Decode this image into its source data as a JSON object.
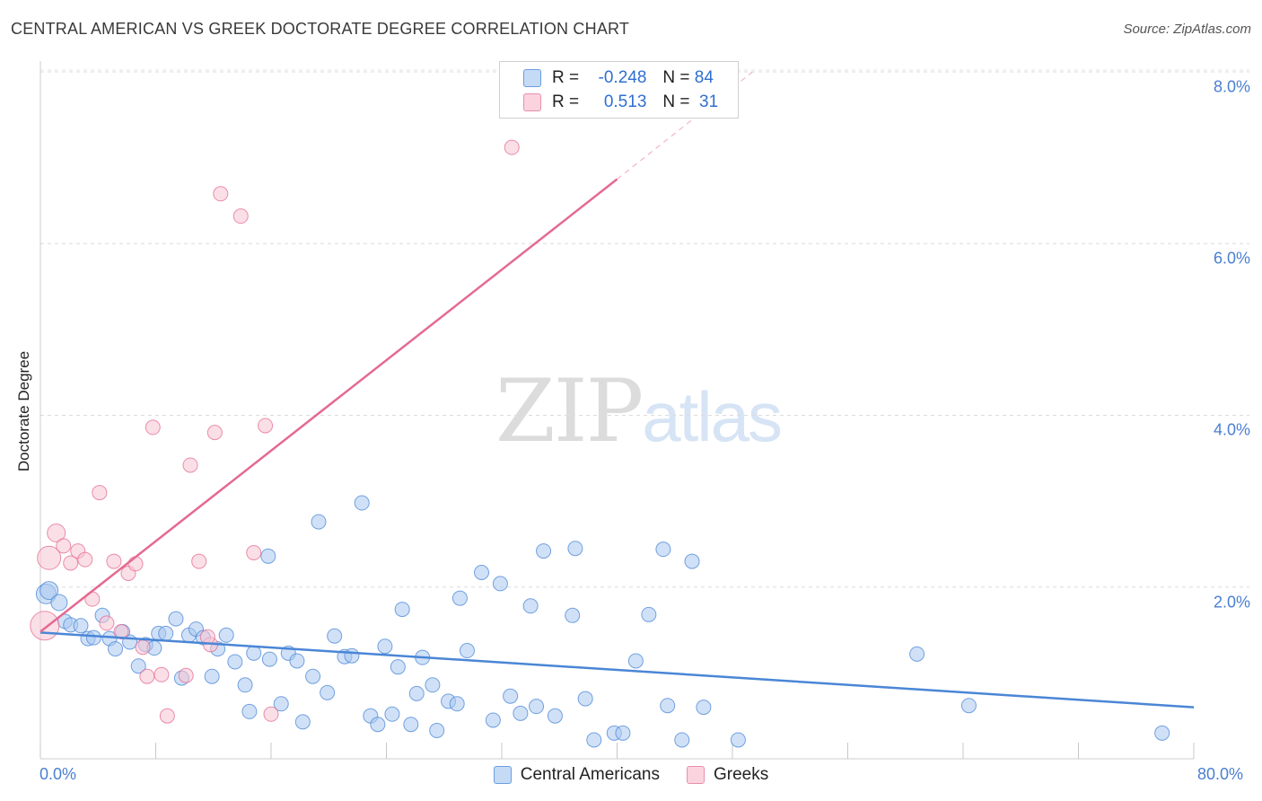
{
  "title": "CENTRAL AMERICAN VS GREEK DOCTORATE DEGREE CORRELATION CHART",
  "source": "Source: ZipAtlas.com",
  "watermark": {
    "part1": "ZIP",
    "part2": "atlas"
  },
  "legend": {
    "rows": [
      {
        "r_label": "R =",
        "r_value": "-0.248",
        "n_label": "N =",
        "n_value": "84",
        "color": "#a9c8f0",
        "border": "#6a9ee0"
      },
      {
        "r_label": "R =",
        "r_value": " 0.513",
        "n_label": "N =",
        "n_value": " 31",
        "color": "#f8c4d4",
        "border": "#e890ab"
      }
    ]
  },
  "bottom_legend": [
    {
      "label": "Central Americans",
      "color": "#a9c8f0",
      "border": "#6a9ee0"
    },
    {
      "label": "Greeks",
      "color": "#f8c4d4",
      "border": "#e890ab"
    }
  ],
  "chart_data": {
    "type": "scatter",
    "title": "CENTRAL AMERICAN VS GREEK DOCTORATE DEGREE CORRELATION CHART",
    "xlabel": "",
    "ylabel": "Doctorate Degree",
    "xlim": [
      0,
      80
    ],
    "ylim": [
      0,
      8.2
    ],
    "x_tick_labels": [
      "0.0%",
      "80.0%"
    ],
    "y_tick_labels": [
      "2.0%",
      "4.0%",
      "6.0%",
      "8.0%"
    ],
    "y_tick_values": [
      2,
      4,
      6,
      8
    ],
    "grid": true,
    "series": [
      {
        "name": "Central Americans",
        "color": "#4a86d6",
        "fill": "#a9c8f0",
        "trend": {
          "x0": 0,
          "y0": 1.47,
          "x1": 80,
          "y1": 0.6
        },
        "points": [
          [
            0.4,
            1.92,
            9
          ],
          [
            0.6,
            1.96,
            8
          ],
          [
            1.3,
            1.82,
            7
          ],
          [
            1.7,
            1.6,
            6
          ],
          [
            2.1,
            1.56,
            6
          ],
          [
            2.8,
            1.55,
            6
          ],
          [
            3.3,
            1.4,
            6
          ],
          [
            3.7,
            1.41,
            6
          ],
          [
            4.3,
            1.67,
            6
          ],
          [
            4.8,
            1.4,
            6
          ],
          [
            5.2,
            1.28,
            6
          ],
          [
            5.7,
            1.48,
            6
          ],
          [
            6.2,
            1.36,
            6
          ],
          [
            6.8,
            1.08,
            6
          ],
          [
            7.3,
            1.33,
            6
          ],
          [
            7.9,
            1.29,
            6
          ],
          [
            8.2,
            1.46,
            6
          ],
          [
            8.7,
            1.46,
            6
          ],
          [
            9.4,
            1.63,
            6
          ],
          [
            9.8,
            0.94,
            6
          ],
          [
            10.3,
            1.44,
            6
          ],
          [
            10.8,
            1.51,
            6
          ],
          [
            11.3,
            1.41,
            6
          ],
          [
            11.9,
            0.96,
            6
          ],
          [
            12.3,
            1.28,
            6
          ],
          [
            12.9,
            1.44,
            6
          ],
          [
            13.5,
            1.13,
            6
          ],
          [
            14.2,
            0.86,
            6
          ],
          [
            14.8,
            1.23,
            6
          ],
          [
            14.5,
            0.55,
            6
          ],
          [
            15.9,
            1.16,
            6
          ],
          [
            15.8,
            2.36,
            6
          ],
          [
            16.7,
            0.64,
            6
          ],
          [
            17.2,
            1.23,
            6
          ],
          [
            17.8,
            1.14,
            6
          ],
          [
            18.2,
            0.43,
            6
          ],
          [
            18.9,
            0.96,
            6
          ],
          [
            19.3,
            2.76,
            6
          ],
          [
            19.9,
            0.77,
            6
          ],
          [
            20.4,
            1.43,
            6
          ],
          [
            21.1,
            1.19,
            6
          ],
          [
            21.6,
            1.2,
            6
          ],
          [
            22.3,
            2.98,
            6
          ],
          [
            22.9,
            0.5,
            6
          ],
          [
            23.4,
            0.4,
            6
          ],
          [
            23.9,
            1.31,
            6
          ],
          [
            24.4,
            0.52,
            6
          ],
          [
            24.8,
            1.07,
            6
          ],
          [
            25.1,
            1.74,
            6
          ],
          [
            25.7,
            0.4,
            6
          ],
          [
            26.1,
            0.76,
            6
          ],
          [
            26.5,
            1.18,
            6
          ],
          [
            27.2,
            0.86,
            6
          ],
          [
            27.5,
            0.33,
            6
          ],
          [
            28.3,
            0.67,
            6
          ],
          [
            28.9,
            0.64,
            6
          ],
          [
            29.6,
            1.26,
            6
          ],
          [
            29.1,
            1.87,
            6
          ],
          [
            30.6,
            2.17,
            6
          ],
          [
            31.4,
            0.45,
            6
          ],
          [
            31.9,
            2.04,
            6
          ],
          [
            32.6,
            0.73,
            6
          ],
          [
            33.3,
            0.53,
            6
          ],
          [
            34.0,
            1.78,
            6
          ],
          [
            34.4,
            0.61,
            6
          ],
          [
            34.9,
            2.42,
            6
          ],
          [
            35.7,
            0.5,
            6
          ],
          [
            36.9,
            1.67,
            6
          ],
          [
            37.1,
            2.45,
            6
          ],
          [
            37.8,
            0.7,
            6
          ],
          [
            38.4,
            0.22,
            6
          ],
          [
            39.8,
            0.3,
            6
          ],
          [
            40.4,
            0.3,
            6
          ],
          [
            41.3,
            1.14,
            6
          ],
          [
            42.2,
            1.68,
            6
          ],
          [
            43.2,
            2.44,
            6
          ],
          [
            43.5,
            0.62,
            6
          ],
          [
            44.5,
            0.22,
            6
          ],
          [
            45.2,
            2.3,
            6
          ],
          [
            46.0,
            0.6,
            6
          ],
          [
            48.4,
            0.22,
            6
          ],
          [
            60.8,
            1.22,
            6
          ],
          [
            64.4,
            0.62,
            6
          ],
          [
            77.8,
            0.3,
            6
          ]
        ]
      },
      {
        "name": "Greeks",
        "color": "#e46a92",
        "fill": "#f8c4d4",
        "trend": {
          "x0": 0,
          "y0": 1.48,
          "x1": 40,
          "y1": 6.75,
          "dash_to_x": 49.4,
          "dash_to_y": 8.0
        },
        "points": [
          [
            0.3,
            1.55,
            14
          ],
          [
            0.6,
            2.34,
            11
          ],
          [
            1.1,
            2.63,
            8
          ],
          [
            1.6,
            2.48,
            6
          ],
          [
            2.1,
            2.28,
            6
          ],
          [
            2.6,
            2.42,
            6
          ],
          [
            3.1,
            2.32,
            6
          ],
          [
            3.6,
            1.86,
            6
          ],
          [
            4.1,
            3.1,
            6
          ],
          [
            4.6,
            1.58,
            6
          ],
          [
            5.1,
            2.3,
            6
          ],
          [
            5.6,
            1.48,
            6
          ],
          [
            6.1,
            2.16,
            6
          ],
          [
            6.6,
            2.27,
            6
          ],
          [
            7.1,
            1.3,
            6
          ],
          [
            7.4,
            0.96,
            6
          ],
          [
            7.8,
            3.86,
            6
          ],
          [
            8.4,
            0.98,
            6
          ],
          [
            8.8,
            0.5,
            6
          ],
          [
            10.1,
            0.97,
            6
          ],
          [
            10.4,
            3.42,
            6
          ],
          [
            11.0,
            2.3,
            6
          ],
          [
            11.8,
            1.33,
            6
          ],
          [
            11.6,
            1.42,
            6
          ],
          [
            12.1,
            3.8,
            6
          ],
          [
            12.5,
            6.58,
            6
          ],
          [
            13.9,
            6.32,
            6
          ],
          [
            14.8,
            2.4,
            6
          ],
          [
            15.6,
            3.88,
            6
          ],
          [
            16.0,
            0.52,
            6
          ],
          [
            32.7,
            7.12,
            6
          ]
        ]
      }
    ]
  }
}
